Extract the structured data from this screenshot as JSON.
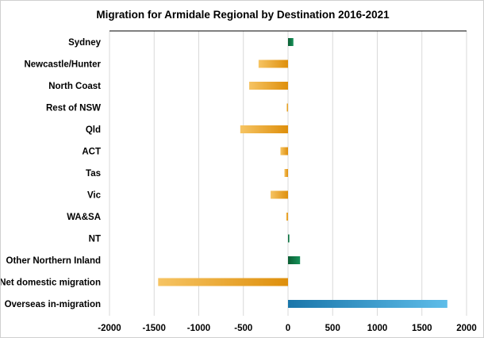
{
  "chart_data": {
    "type": "bar",
    "orientation": "horizontal",
    "title": "Migration for Armidale Regional by Destination 2016-2021",
    "xlabel": "",
    "ylabel": "",
    "categories": [
      "Sydney",
      "Newcastle/Hunter",
      "North Coast",
      "Rest of NSW",
      "Qld",
      "ACT",
      "Tas",
      "Vic",
      "WA&SA",
      "NT",
      "Other Northern Inland",
      "Net domestic migration",
      "Overseas in-migration"
    ],
    "values": [
      60,
      -330,
      -435,
      -15,
      -535,
      -85,
      -40,
      -195,
      -20,
      15,
      135,
      -1455,
      1785
    ],
    "xlim": [
      -2000,
      2000
    ],
    "xticks": [
      "-2000",
      "-1500",
      "-1000",
      "-500",
      "0",
      "500",
      "1000",
      "1500",
      "2000"
    ],
    "grid": true,
    "colors": {
      "negative": "#e39412",
      "positive_domestic": "#0e7a45",
      "overseas": "#2a8fc4"
    }
  }
}
